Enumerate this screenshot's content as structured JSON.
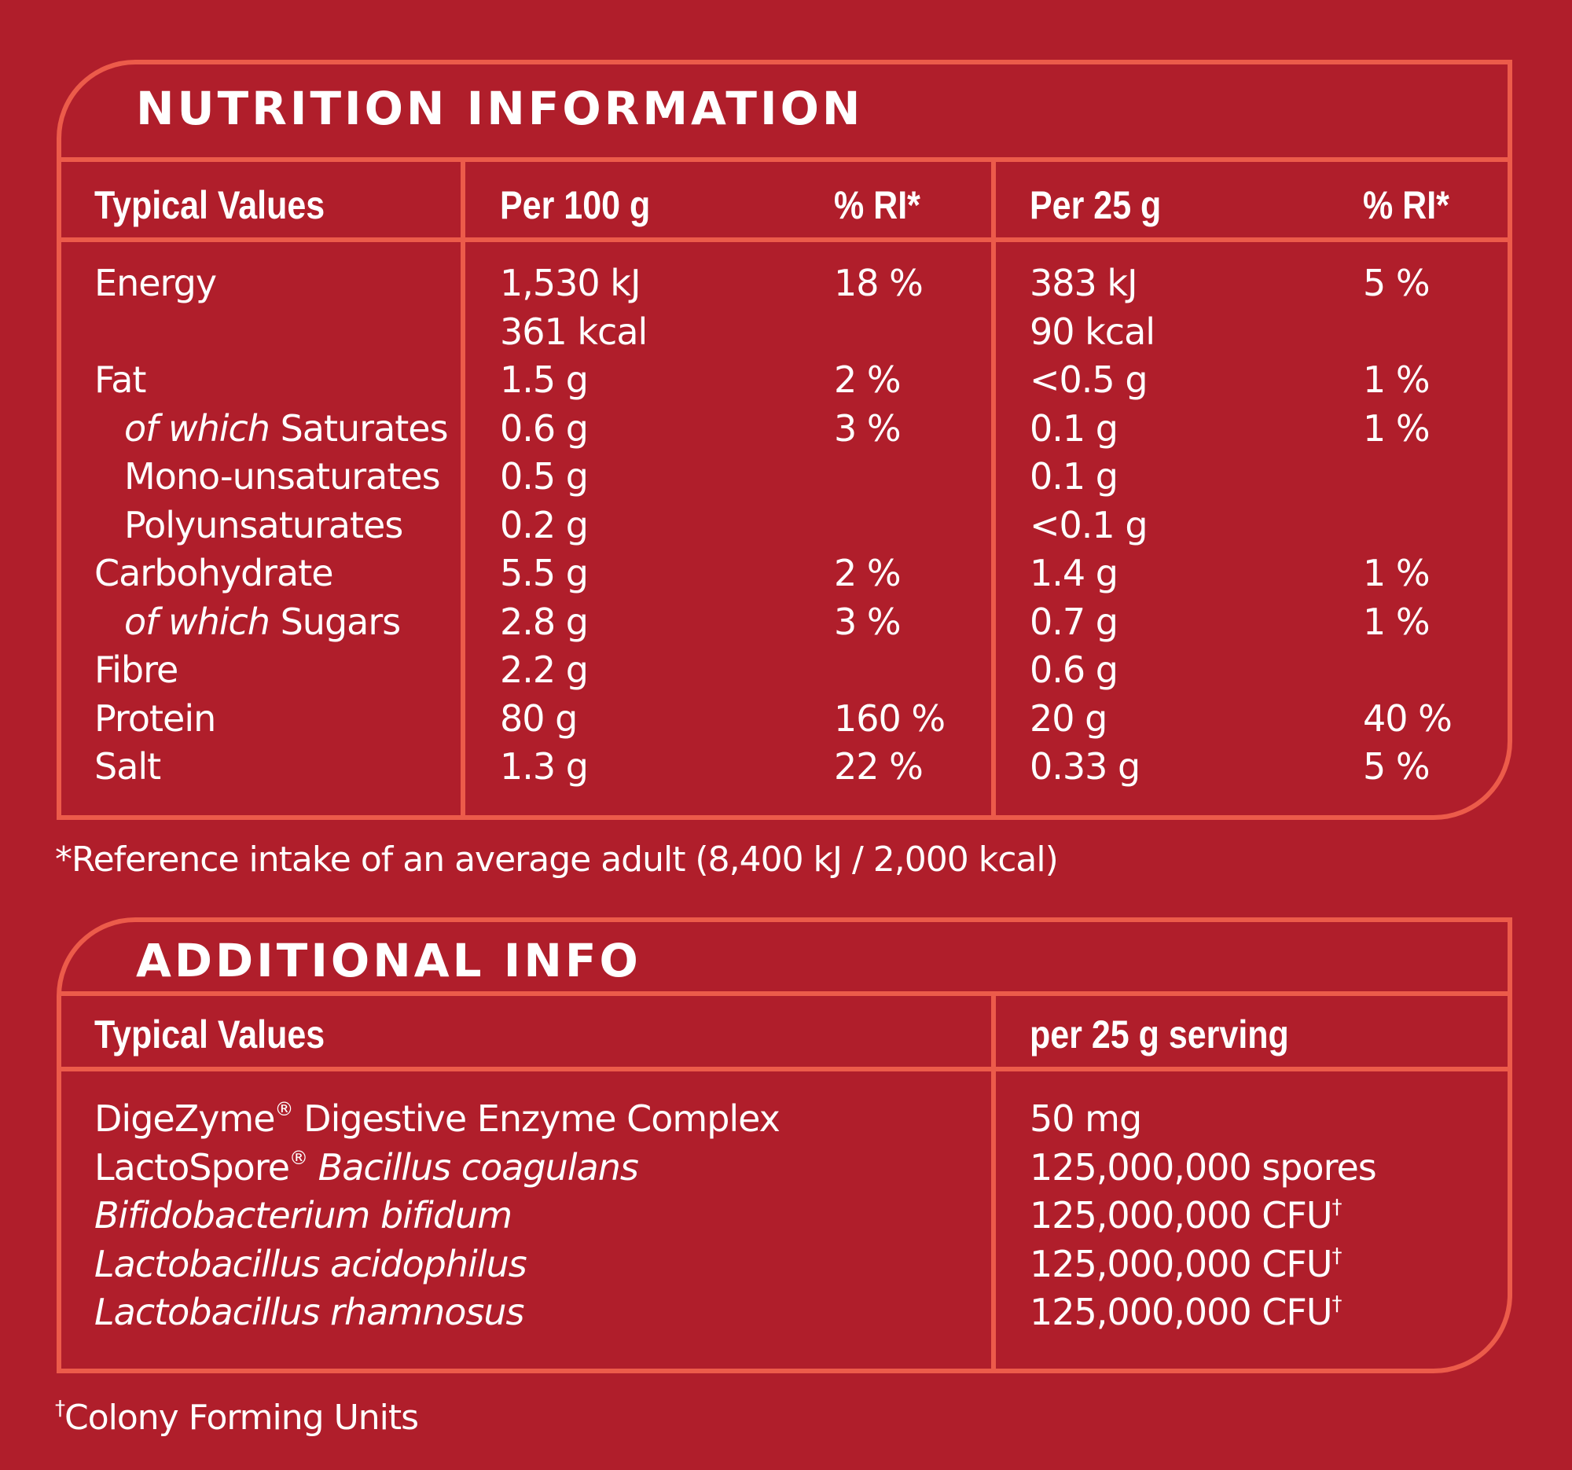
{
  "nutrition": {
    "title": "NUTRITION INFORMATION",
    "headers": {
      "typical": "Typical Values",
      "per100": "Per 100 g",
      "ri1": "% RI*",
      "per25": "Per 25 g",
      "ri2": "% RI*"
    },
    "rows": [
      {
        "label": "Energy",
        "per100": "1,530 kJ",
        "ri1": "18 %",
        "per25": "383 kJ",
        "ri2": "5 %"
      },
      {
        "label": "",
        "per100": "361 kcal",
        "ri1": "",
        "per25": "90 kcal",
        "ri2": ""
      },
      {
        "label": "Fat",
        "per100": "1.5 g",
        "ri1": "2 %",
        "per25": "<0.5 g",
        "ri2": "1 %"
      },
      {
        "prefix": "of which",
        "label": " Saturates",
        "per100": "0.6 g",
        "ri1": "3 %",
        "per25": "0.1 g",
        "ri2": "1 %"
      },
      {
        "label": "Mono-unsaturates",
        "per100": "0.5 g",
        "ri1": "",
        "per25": "0.1 g",
        "ri2": ""
      },
      {
        "label": "Polyunsaturates",
        "per100": "0.2 g",
        "ri1": "",
        "per25": "<0.1 g",
        "ri2": ""
      },
      {
        "label": "Carbohydrate",
        "per100": "5.5 g",
        "ri1": "2 %",
        "per25": "1.4 g",
        "ri2": "1 %"
      },
      {
        "prefix": "of which",
        "label": " Sugars",
        "per100": "2.8 g",
        "ri1": "3 %",
        "per25": "0.7 g",
        "ri2": "1 %"
      },
      {
        "label": "Fibre",
        "per100": "2.2 g",
        "ri1": "",
        "per25": "0.6 g",
        "ri2": ""
      },
      {
        "label": "Protein",
        "per100": "80 g",
        "ri1": "160 %",
        "per25": "20 g",
        "ri2": "40 %"
      },
      {
        "label": "Salt",
        "per100": "1.3 g",
        "ri1": "22 %",
        "per25": "0.33 g",
        "ri2": "5 %"
      }
    ],
    "footnote": "*Reference intake of an average adult (8,400 kJ / 2,000 kcal)"
  },
  "additional": {
    "title": "ADDITIONAL INFO",
    "headers": {
      "typical": "Typical Values",
      "serving": "per 25 g serving"
    },
    "rows": [
      {
        "label": "DigeZyme",
        "reg": "®",
        "rest": " Digestive Enzyme Complex",
        "value": "50 mg",
        "dag": ""
      },
      {
        "label": "LactoSpore",
        "reg": "®",
        "rest_italic": " Bacillus coagulans",
        "value": "125,000,000 spores",
        "dag": ""
      },
      {
        "italic": "Bifidobacterium bifidum",
        "value": "125,000,000 CFU",
        "dag": "†"
      },
      {
        "italic": "Lactobacillus acidophilus",
        "value": "125,000,000 CFU",
        "dag": "†"
      },
      {
        "italic": "Lactobacillus rhamnosus",
        "value": "125,000,000 CFU",
        "dag": "†"
      }
    ],
    "footnote_mark": "†",
    "footnote": "Colony Forming Units"
  },
  "colors": {
    "background": "#b01e2b",
    "border": "#ec5b4a",
    "text": "#ffffff"
  }
}
